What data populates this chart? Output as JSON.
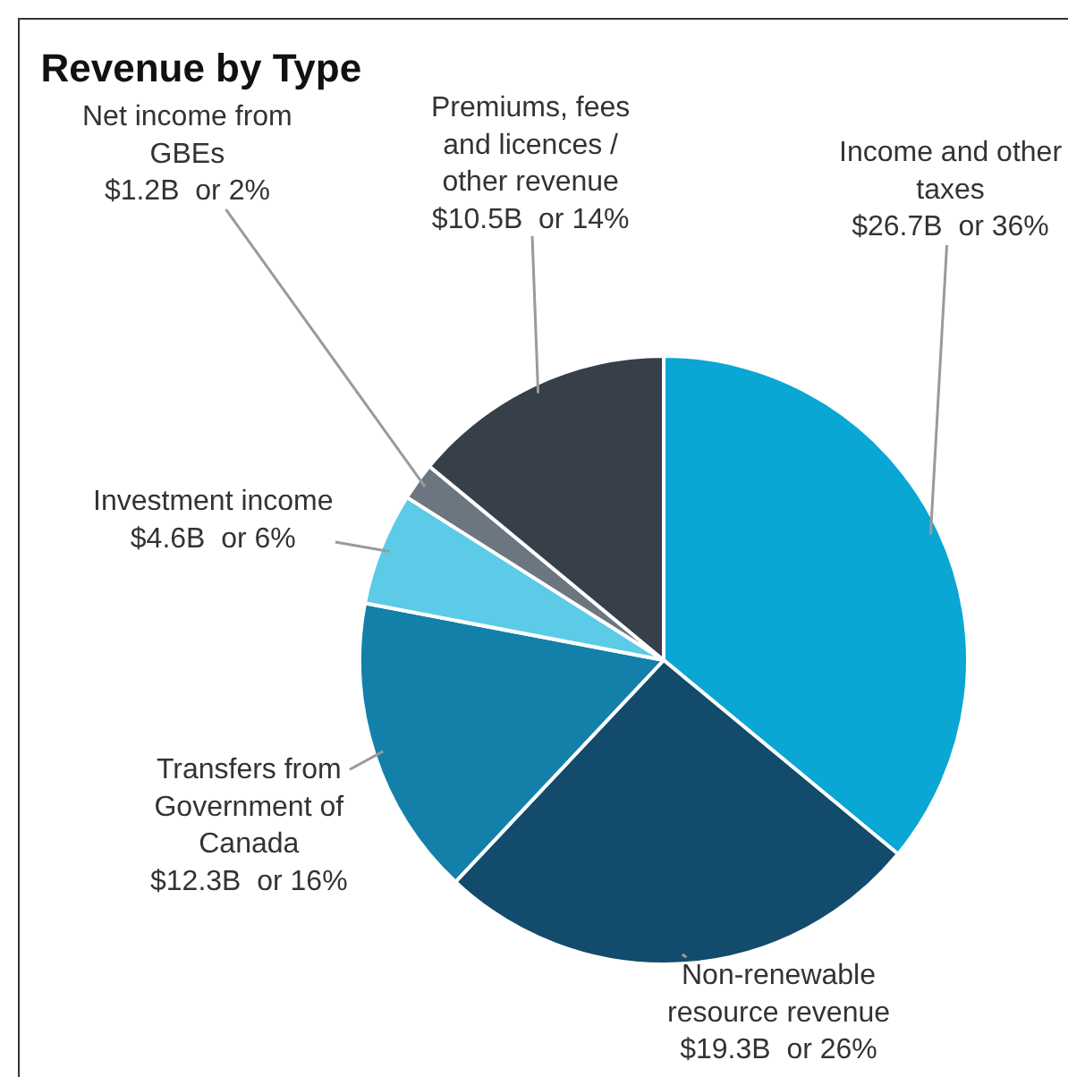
{
  "chart_data": {
    "type": "pie",
    "title": "Revenue by Type",
    "categories": [
      "Income and other taxes",
      "Non-renewable resource revenue",
      "Transfers from Government of Canada",
      "Investment income",
      "Net income from GBEs",
      "Premiums, fees and licences / other revenue"
    ],
    "values": [
      36,
      26,
      16,
      6,
      2,
      14
    ],
    "value_labels": [
      "$26.7B  or 36%",
      "$19.3B  or 26%",
      "$12.3B  or 16%",
      "$4.6B  or 6%",
      "$1.2B  or 2%",
      "$10.5B  or 14%"
    ],
    "colors": [
      "#0aa6d4",
      "#124b6b",
      "#1380a9",
      "#5ccbe8",
      "#6b7680",
      "#363f4a"
    ],
    "legend": false
  }
}
